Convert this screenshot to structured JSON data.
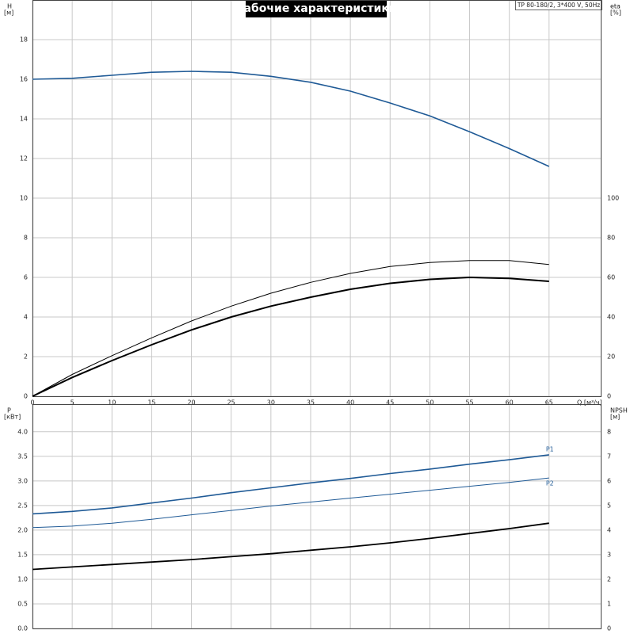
{
  "chart_data": [
    {
      "type": "line",
      "title": "Рабочие характеристики",
      "subtitle": "TP 80-180/2, 3*400 V, 50Hz",
      "ylabel": "H",
      "yunit": "[м]",
      "y2label": "eta",
      "y2unit": "[%]",
      "xlabel": "Q [м³/ч]",
      "x": [
        0,
        5,
        10,
        15,
        20,
        25,
        30,
        35,
        40,
        45,
        50,
        55,
        60,
        65
      ],
      "xlim": [
        0,
        71.5
      ],
      "xticks": [
        0,
        5,
        10,
        15,
        20,
        25,
        30,
        35,
        40,
        45,
        50,
        55,
        60,
        65
      ],
      "ylim": [
        0,
        20
      ],
      "yticks": [
        0,
        2,
        4,
        6,
        8,
        10,
        12,
        14,
        16,
        18
      ],
      "y2lim": [
        0,
        200
      ],
      "y2ticks": [
        0,
        20,
        40,
        60,
        80,
        100
      ],
      "grid": true,
      "series": [
        {
          "color": "#1f5a96",
          "values": [
            16,
            16.05,
            16.2,
            16.35,
            16.4,
            16.35,
            16.15,
            15.85,
            15.4,
            14.8,
            14.15,
            13.35,
            12.5,
            11.6
          ]
        },
        {
          "color": "#000000",
          "axis": "y2",
          "values": [
            0,
            11,
            20.5,
            29.5,
            38,
            45.5,
            52,
            57.5,
            62,
            65.5,
            67.5,
            68.5,
            68.5,
            66.5
          ]
        },
        {
          "color": "#000000",
          "axis": "y2",
          "values": [
            0,
            9.5,
            18,
            26,
            33.5,
            40,
            45.5,
            50,
            54,
            57,
            59,
            60,
            59.5,
            58
          ]
        }
      ]
    },
    {
      "type": "line",
      "ylabel": "P",
      "yunit": "[кВт]",
      "y2label": "NPSH",
      "y2unit": "[м]",
      "x": [
        0,
        5,
        10,
        15,
        20,
        25,
        30,
        35,
        40,
        45,
        50,
        55,
        60,
        65
      ],
      "xlim": [
        0,
        71.5
      ],
      "ylim": [
        0,
        4.56
      ],
      "yticks": [
        {
          "value": 0,
          "label": "0.0"
        },
        0.5,
        {
          "value": 1,
          "label": "1.0"
        },
        1.5,
        {
          "value": 2,
          "label": "2.0"
        },
        2.5,
        {
          "value": 3,
          "label": "3.0"
        },
        3.5,
        {
          "value": 4,
          "label": "4.0"
        }
      ],
      "y2lim": [
        0,
        9.12
      ],
      "y2ticks": [
        0,
        1,
        2,
        3,
        4,
        5,
        6,
        7,
        8
      ],
      "grid": true,
      "series": [
        {
          "name": "P1",
          "color": "#1f5a96",
          "values": [
            2.33,
            2.38,
            2.45,
            2.55,
            2.65,
            2.76,
            2.86,
            2.96,
            3.05,
            3.15,
            3.24,
            3.34,
            3.43,
            3.53
          ]
        },
        {
          "name": "P2",
          "color": "#1f5a96",
          "values": [
            2.05,
            2.08,
            2.14,
            2.22,
            2.31,
            2.4,
            2.49,
            2.57,
            2.65,
            2.73,
            2.81,
            2.89,
            2.97,
            3.06
          ]
        },
        {
          "color": "#000000",
          "axis": "y2",
          "values": [
            2.4,
            2.5,
            2.6,
            2.7,
            2.8,
            2.92,
            3.04,
            3.18,
            3.32,
            3.48,
            3.66,
            3.86,
            4.06,
            4.28
          ]
        }
      ]
    }
  ]
}
